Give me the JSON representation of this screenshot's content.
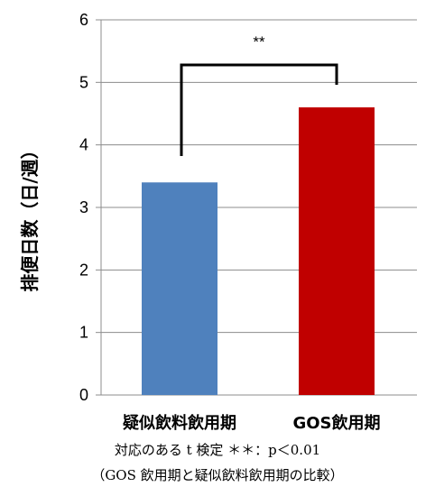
{
  "chart_data": {
    "type": "bar",
    "categories": [
      "疑似飲料飲用期",
      "GOS飲用期"
    ],
    "values": [
      3.4,
      4.6
    ],
    "colors": [
      "#4F81BD",
      "#C00000"
    ],
    "title": "",
    "xlabel": "",
    "ylabel": "排便日数（日/週）",
    "ylim": [
      0,
      6
    ],
    "yticks": [
      0,
      1,
      2,
      3,
      4,
      5,
      6
    ],
    "grid": "horizontal",
    "legend": "none",
    "significance": {
      "label": "**",
      "between": [
        "疑似飲料飲用期",
        "GOS飲用期"
      ]
    },
    "notes": [
      "対応のある t 検定 ＊＊：p＜0.01",
      "（GOS 飲用期と疑似飲料飲用期の比較）"
    ]
  }
}
